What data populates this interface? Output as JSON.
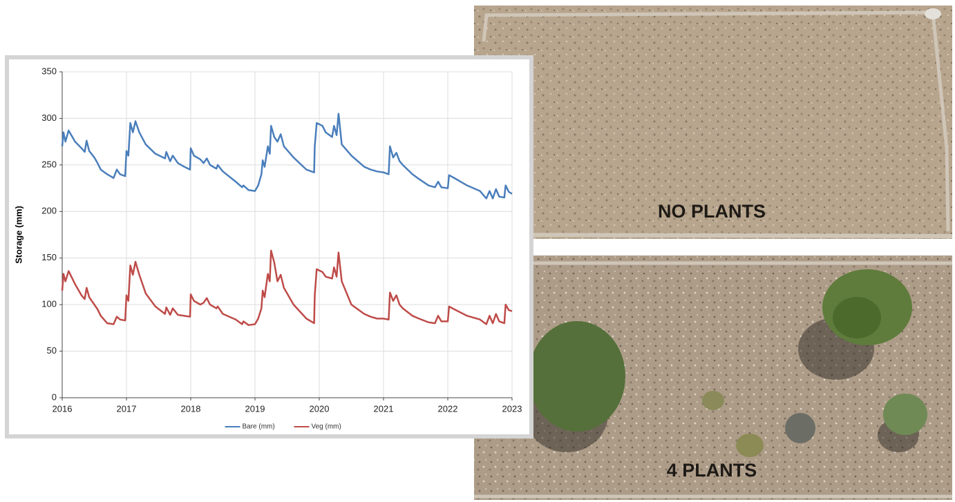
{
  "chart_data": {
    "type": "line",
    "y_label": "Storage (mm)",
    "x": [
      2016.0,
      2016.02,
      2016.05,
      2016.1,
      2016.2,
      2016.3,
      2016.35,
      2016.38,
      2016.42,
      2016.5,
      2016.55,
      2016.6,
      2016.7,
      2016.8,
      2016.85,
      2016.9,
      2016.98,
      2017.0,
      2017.03,
      2017.06,
      2017.1,
      2017.14,
      2017.2,
      2017.3,
      2017.45,
      2017.6,
      2017.62,
      2017.68,
      2017.72,
      2017.8,
      2017.9,
      2017.99,
      2018.0,
      2018.05,
      2018.15,
      2018.2,
      2018.25,
      2018.3,
      2018.4,
      2018.42,
      2018.5,
      2018.7,
      2018.8,
      2018.82,
      2018.9,
      2019.0,
      2019.05,
      2019.1,
      2019.12,
      2019.15,
      2019.2,
      2019.23,
      2019.25,
      2019.3,
      2019.35,
      2019.4,
      2019.45,
      2019.6,
      2019.8,
      2019.92,
      2019.93,
      2019.96,
      2020.05,
      2020.1,
      2020.2,
      2020.23,
      2020.27,
      2020.3,
      2020.35,
      2020.5,
      2020.7,
      2020.8,
      2020.9,
      2021.0,
      2021.08,
      2021.1,
      2021.15,
      2021.2,
      2021.25,
      2021.3,
      2021.45,
      2021.55,
      2021.7,
      2021.8,
      2021.85,
      2021.9,
      2022.0,
      2022.02,
      2022.1,
      2022.3,
      2022.5,
      2022.6,
      2022.65,
      2022.7,
      2022.75,
      2022.8,
      2022.88,
      2022.9,
      2022.95,
      2023.0
    ],
    "series": [
      {
        "name": "Bare (mm)",
        "color": "#4a7ebb",
        "values": [
          270,
          285,
          275,
          287,
          275,
          268,
          264,
          276,
          265,
          258,
          252,
          245,
          240,
          236,
          245,
          240,
          238,
          265,
          260,
          295,
          285,
          297,
          285,
          272,
          262,
          257,
          264,
          254,
          260,
          252,
          248,
          245,
          268,
          260,
          256,
          252,
          257,
          250,
          246,
          250,
          243,
          232,
          226,
          228,
          223,
          222,
          228,
          240,
          255,
          248,
          270,
          262,
          292,
          280,
          275,
          283,
          270,
          258,
          245,
          242,
          270,
          295,
          292,
          285,
          280,
          292,
          282,
          305,
          272,
          260,
          248,
          245,
          243,
          242,
          240,
          270,
          258,
          263,
          254,
          250,
          240,
          235,
          228,
          226,
          232,
          226,
          225,
          239,
          236,
          228,
          222,
          214,
          222,
          214,
          224,
          216,
          215,
          228,
          221,
          219
        ]
      },
      {
        "name": "Veg (mm)",
        "color": "#be4b48",
        "values": [
          115,
          133,
          125,
          136,
          122,
          110,
          106,
          118,
          108,
          100,
          95,
          88,
          80,
          79,
          87,
          84,
          83,
          110,
          104,
          142,
          132,
          146,
          132,
          112,
          98,
          90,
          97,
          89,
          96,
          89,
          88,
          87,
          111,
          104,
          100,
          102,
          107,
          100,
          96,
          98,
          90,
          84,
          79,
          82,
          78,
          79,
          85,
          96,
          115,
          108,
          133,
          125,
          158,
          145,
          125,
          132,
          118,
          100,
          85,
          80,
          110,
          138,
          135,
          130,
          128,
          140,
          130,
          156,
          125,
          100,
          90,
          87,
          85,
          85,
          84,
          113,
          104,
          110,
          100,
          96,
          88,
          85,
          81,
          80,
          88,
          82,
          82,
          98,
          95,
          88,
          84,
          79,
          88,
          80,
          90,
          82,
          80,
          100,
          94,
          93
        ]
      }
    ],
    "xlim": [
      2016,
      2023
    ],
    "xticks": [
      2016,
      2017,
      2018,
      2019,
      2020,
      2021,
      2022,
      2023
    ],
    "ylim": [
      0,
      350
    ],
    "yticks": [
      0,
      50,
      100,
      150,
      200,
      250,
      300,
      350
    ],
    "grid": true,
    "legend": "bottom"
  },
  "photo_labels": [
    "NO PLANTS",
    "4 PLANTS"
  ]
}
